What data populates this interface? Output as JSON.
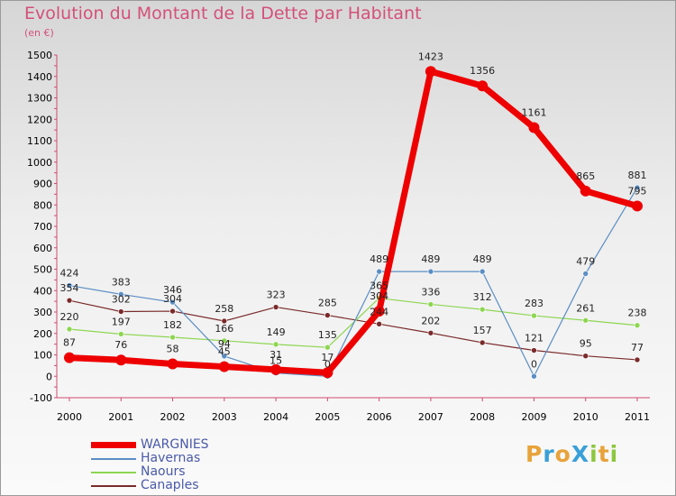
{
  "title": "Evolution du Montant de la Dette par Habitant",
  "subtitle": "(en €)",
  "logo": {
    "text": "ProXiti",
    "letters": [
      {
        "ch": "P",
        "color": "#e8a33a"
      },
      {
        "ch": "r",
        "color": "#3aa0d8"
      },
      {
        "ch": "o",
        "color": "#e8a33a"
      },
      {
        "ch": "X",
        "color": "#3aa0d8"
      },
      {
        "ch": "i",
        "color": "#8dc63f"
      },
      {
        "ch": "t",
        "color": "#e8a33a"
      },
      {
        "ch": "i",
        "color": "#8dc63f"
      }
    ]
  },
  "chart_data": {
    "type": "line",
    "categories": [
      "2000",
      "2001",
      "2002",
      "2003",
      "2004",
      "2005",
      "2006",
      "2007",
      "2008",
      "2009",
      "2010",
      "2011"
    ],
    "ylim": [
      -100,
      1500
    ],
    "yticks": [
      -100,
      0,
      100,
      200,
      300,
      400,
      500,
      600,
      700,
      800,
      900,
      1000,
      1100,
      1200,
      1300,
      1400,
      1500
    ],
    "grid": false,
    "legend_position": "bottom-left",
    "series": [
      {
        "name": "WARGNIES",
        "color": "#ee0000",
        "values": [
          87,
          76,
          58,
          45,
          31,
          17,
          304,
          1423,
          1356,
          1161,
          865,
          795
        ],
        "labels": [
          "87",
          "76",
          "58",
          "45",
          "31",
          "17",
          "304",
          "1423",
          "1356",
          "1161",
          "865",
          "795"
        ],
        "width": 7,
        "marker": 6
      },
      {
        "name": "Havernas",
        "color": "#5a8ec4",
        "values": [
          424,
          383,
          346,
          94,
          15,
          0,
          489,
          489,
          489,
          0,
          479,
          881
        ],
        "labels": [
          "424",
          "383",
          "346",
          "94",
          "15",
          "0",
          "489",
          "489",
          "489",
          "0",
          "479",
          "881"
        ],
        "width": 1.2,
        "marker": 3
      },
      {
        "name": "Naours",
        "color": "#8dd651",
        "values": [
          220,
          197,
          182,
          166,
          149,
          135,
          365,
          336,
          312,
          283,
          261,
          238
        ],
        "labels": [
          "220",
          "197",
          "182",
          "166",
          "149",
          "135",
          "365",
          "336",
          "312",
          "283",
          "261",
          "238"
        ],
        "width": 1.2,
        "marker": 3
      },
      {
        "name": "Canaples",
        "color": "#7a2a2a",
        "values": [
          354,
          302,
          304,
          258,
          323,
          285,
          244,
          202,
          157,
          121,
          95,
          77
        ],
        "labels": [
          "354",
          "302",
          "304",
          "258",
          "323",
          "285",
          "244",
          "202",
          "157",
          "121",
          "95",
          "77"
        ],
        "width": 1.2,
        "marker": 3
      }
    ]
  }
}
